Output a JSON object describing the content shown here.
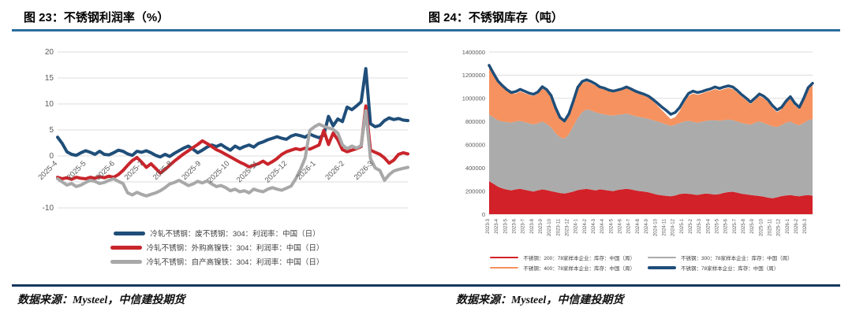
{
  "page": {
    "source_note_left": "数据来源：Mysteel，中信建投期货",
    "source_note_right": "数据来源：Mysteel，中信建投期货"
  },
  "figures": [
    {
      "title": "图 23：不锈钢利润率（%）"
    },
    {
      "title": "图 24：不锈钢库存（吨）"
    }
  ],
  "colors": {
    "rule_top": "#2a6d9c",
    "rule_bottom": "#17375e",
    "grid": "#dcdcdc",
    "tick_text": "#595959",
    "line_blue": "#1f4e79",
    "line_red": "#c9252c",
    "line_gray": "#a8a8a8",
    "area_red": "#d22128",
    "area_gray": "#ababab",
    "area_orange": "#f6925f"
  },
  "chart_data": [
    {
      "type": "line",
      "title": "图 23：不锈钢利润率（%）",
      "xlabel": "",
      "ylabel": "",
      "ylim": [
        -10,
        20
      ],
      "y_ticks": [
        20,
        15,
        10,
        5,
        0,
        -10
      ],
      "y_grid": [
        20,
        15,
        10,
        5,
        0,
        -5,
        -10
      ],
      "x_ticks": [
        "2025-4",
        "2025-5",
        "2025-6",
        "2025-7",
        "2025-8",
        "2025-9",
        "2025-10",
        "2025-11",
        "2025-12",
        "2026-1",
        "2026-2",
        "2026-3"
      ],
      "x_span_months": 12.2,
      "grid": true,
      "legend_position": "bottom",
      "series": [
        {
          "name": "冷轧不锈钢：废不锈钢：304：利润率：中国（日）",
          "color": "#1f4e79",
          "width": 4,
          "values": [
            3.6,
            2.4,
            0.8,
            0.3,
            0.1,
            0.6,
            1.0,
            0.7,
            0.3,
            0.9,
            0.3,
            0.2,
            0.6,
            1.1,
            0.9,
            0.4,
            0.1,
            0.9,
            0.7,
            1.0,
            0.6,
            0.1,
            -0.2,
            0.3,
            -0.1,
            0.5,
            1.0,
            1.5,
            1.9,
            1.3,
            0.6,
            1.1,
            1.7,
            2.1,
            1.8,
            2.2,
            1.6,
            1.1,
            1.9,
            1.4,
            1.8,
            2.1,
            1.7,
            2.4,
            2.7,
            3.1,
            3.4,
            3.7,
            3.4,
            3.2,
            3.8,
            4.1,
            3.9,
            3.6,
            4.2,
            3.8,
            3.5,
            4.0,
            7.6,
            5.8,
            7.1,
            6.6,
            9.4,
            8.9,
            9.6,
            10.4,
            16.8,
            6.2,
            5.6,
            5.9,
            6.8,
            7.3,
            7.0,
            7.2,
            6.9,
            6.8
          ]
        },
        {
          "name": "冷轧不锈钢：外购高镍铁：304：利润率：中国（日）",
          "color": "#c9252c",
          "width": 4,
          "values": [
            -4.1,
            -4.4,
            -4.2,
            -4.5,
            -4.1,
            -4.3,
            -4.4,
            -4.1,
            -4.3,
            -4.0,
            -4.2,
            -3.9,
            -4.1,
            -3.6,
            -2.8,
            -1.8,
            -0.9,
            -0.3,
            -1.2,
            -2.2,
            -1.5,
            -2.4,
            -3.3,
            -2.6,
            -1.8,
            -1.0,
            -0.3,
            0.4,
            1.0,
            1.6,
            2.2,
            2.9,
            2.4,
            1.8,
            1.2,
            0.8,
            0.3,
            -0.2,
            -0.7,
            -1.2,
            -1.6,
            -2.1,
            -1.8,
            -1.5,
            -1.0,
            -1.6,
            -1.1,
            -0.5,
            0.3,
            0.8,
            1.1,
            1.4,
            1.2,
            1.5,
            1.3,
            1.7,
            2.1,
            4.9,
            2.2,
            4.4,
            3.1,
            1.2,
            0.8,
            1.1,
            1.4,
            1.8,
            9.6,
            1.1,
            0.7,
            0.3,
            -0.4,
            -1.4,
            -0.8,
            0.3,
            0.6,
            0.4
          ]
        },
        {
          "name": "冷轧不锈钢：自产高镍铁：304：利润率：中国（日）",
          "color": "#a8a8a8",
          "width": 4,
          "values": [
            -4.4,
            -5.0,
            -5.6,
            -5.3,
            -5.9,
            -5.6,
            -5.1,
            -4.7,
            -4.9,
            -5.3,
            -5.1,
            -4.7,
            -4.4,
            -4.9,
            -5.3,
            -7.1,
            -7.5,
            -7.0,
            -7.4,
            -7.7,
            -7.4,
            -7.1,
            -6.7,
            -6.1,
            -5.4,
            -5.1,
            -4.7,
            -5.2,
            -5.7,
            -5.4,
            -4.9,
            -5.2,
            -4.8,
            -5.4,
            -5.9,
            -5.7,
            -6.1,
            -6.7,
            -6.4,
            -6.9,
            -6.7,
            -7.1,
            -6.4,
            -6.7,
            -6.9,
            -6.4,
            -6.1,
            -6.4,
            -6.6,
            -6.2,
            -5.8,
            -4.4,
            -2.6,
            -0.4,
            4.9,
            5.6,
            6.1,
            5.7,
            5.4,
            5.1,
            4.4,
            2.1,
            1.4,
            1.9,
            1.5,
            2.0,
            8.7,
            -0.5,
            -2.3,
            -2.8,
            -4.7,
            -3.6,
            -2.9,
            -2.6,
            -2.4,
            -2.2
          ]
        }
      ]
    },
    {
      "type": "stacked-area+line",
      "title": "图 24：不锈钢库存（吨）",
      "xlabel": "",
      "ylabel": "",
      "ylim": [
        0,
        1400000
      ],
      "y_ticks": [
        0,
        200000,
        400000,
        600000,
        800000,
        1000000,
        1200000,
        1400000
      ],
      "x_ticks": [
        "2023-3",
        "2023-4",
        "2023-5",
        "2023-6",
        "2023-7",
        "2023-8",
        "2023-9",
        "2023-10",
        "2023-11",
        "2023-12",
        "2024-1",
        "2024-2",
        "2024-3",
        "2024-4",
        "2024-5",
        "2024-6",
        "2024-7",
        "2024-8",
        "2024-9",
        "2024-10",
        "2024-11",
        "2024-12",
        "2025-1",
        "2025-2",
        "2025-3",
        "2025-4",
        "2025-5",
        "2025-6",
        "2025-7",
        "2025-8",
        "2025-9",
        "2025-10",
        "2025-11",
        "2025-12",
        "2026-1",
        "2026-2",
        "2026-3"
      ],
      "x_span_months": 36.7,
      "grid": true,
      "legend_position": "bottom",
      "stack_series": [
        {
          "name": "不锈钢：200：78家样本企业：库存：中国（周）",
          "color": "#d22128",
          "values": [
            285000,
            262000,
            238000,
            222000,
            212000,
            206000,
            214000,
            219000,
            211000,
            203000,
            196000,
            206000,
            214000,
            208000,
            199000,
            191000,
            183000,
            178000,
            186000,
            196000,
            208000,
            214000,
            218000,
            212000,
            206000,
            214000,
            210000,
            204000,
            199000,
            209000,
            214000,
            219000,
            214000,
            206000,
            199000,
            196000,
            189000,
            178000,
            168000,
            163000,
            158000,
            154000,
            162000,
            173000,
            179000,
            176000,
            171000,
            166000,
            173000,
            179000,
            174000,
            169000,
            174000,
            184000,
            191000,
            194000,
            186000,
            177000,
            171000,
            166000,
            161000,
            157000,
            151000,
            143000,
            137000,
            146000,
            156000,
            161000,
            166000,
            159000,
            155000,
            161000,
            166000,
            160000
          ]
        },
        {
          "name": "不锈钢：300：78家样本企业：库存：中国（周）",
          "color": "#ababab",
          "values": [
            575000,
            573000,
            572000,
            578000,
            583000,
            584000,
            586000,
            586000,
            584000,
            582000,
            579000,
            579000,
            586000,
            572000,
            551000,
            509000,
            482000,
            474000,
            504000,
            564000,
            622000,
            666000,
            687000,
            683000,
            674000,
            656000,
            652000,
            651000,
            651000,
            649000,
            648000,
            649000,
            644000,
            640000,
            639000,
            636000,
            633000,
            634000,
            632000,
            625000,
            617000,
            608000,
            610000,
            615000,
            621000,
            630000,
            627000,
            624000,
            625000,
            627000,
            636000,
            643000,
            632000,
            628000,
            625000,
            618000,
            614000,
            611000,
            609000,
            606000,
            629000,
            643000,
            637000,
            629000,
            621000,
            606000,
            614000,
            629000,
            634000,
            621000,
            613000,
            627000,
            644000,
            660000
          ]
        },
        {
          "name": "不锈钢：400：78家样本企业：库存：中国（周）",
          "color": "#f6925f",
          "values": [
            405000,
            365000,
            330000,
            300000,
            272000,
            252000,
            240000,
            255000,
            250000,
            245000,
            245000,
            255000,
            285000,
            280000,
            260000,
            205000,
            155000,
            138000,
            160000,
            200000,
            250000,
            250000,
            240000,
            235000,
            230000,
            215000,
            213000,
            205000,
            200000,
            202000,
            208000,
            217000,
            212000,
            204000,
            197000,
            190000,
            183000,
            163000,
            138000,
            110000,
            83000,
            58000,
            66000,
            102000,
            160000,
            214000,
            244000,
            240000,
            242000,
            249000,
            255000,
            268000,
            262000,
            268000,
            274000,
            268000,
            250000,
            227000,
            205000,
            178000,
            195000,
            220000,
            212000,
            196000,
            157000,
            128000,
            135000,
            170000,
            200000,
            160000,
            137000,
            197000,
            265000,
            300000
          ]
        }
      ],
      "line_series": {
        "name": "不锈钢：78家样本企业：库存：中国（周）",
        "color": "#1f4e79",
        "width": 3.5,
        "values": [
          1285000,
          1215000,
          1150000,
          1110000,
          1075000,
          1050000,
          1058000,
          1078000,
          1062000,
          1045000,
          1035000,
          1055000,
          1100000,
          1075000,
          1025000,
          920000,
          835000,
          805000,
          865000,
          975000,
          1095000,
          1145000,
          1160000,
          1145000,
          1125000,
          1098000,
          1088000,
          1072000,
          1062000,
          1072000,
          1082000,
          1098000,
          1082000,
          1062000,
          1048000,
          1035000,
          1018000,
          990000,
          958000,
          925000,
          895000,
          862000,
          878000,
          920000,
          985000,
          1042000,
          1062000,
          1050000,
          1058000,
          1072000,
          1082000,
          1098000,
          1085000,
          1098000,
          1108000,
          1098000,
          1068000,
          1032000,
          1002000,
          968000,
          1002000,
          1038000,
          1018000,
          985000,
          935000,
          900000,
          922000,
          975000,
          1015000,
          958000,
          922000,
          1000000,
          1092000,
          1130000
        ]
      }
    }
  ]
}
